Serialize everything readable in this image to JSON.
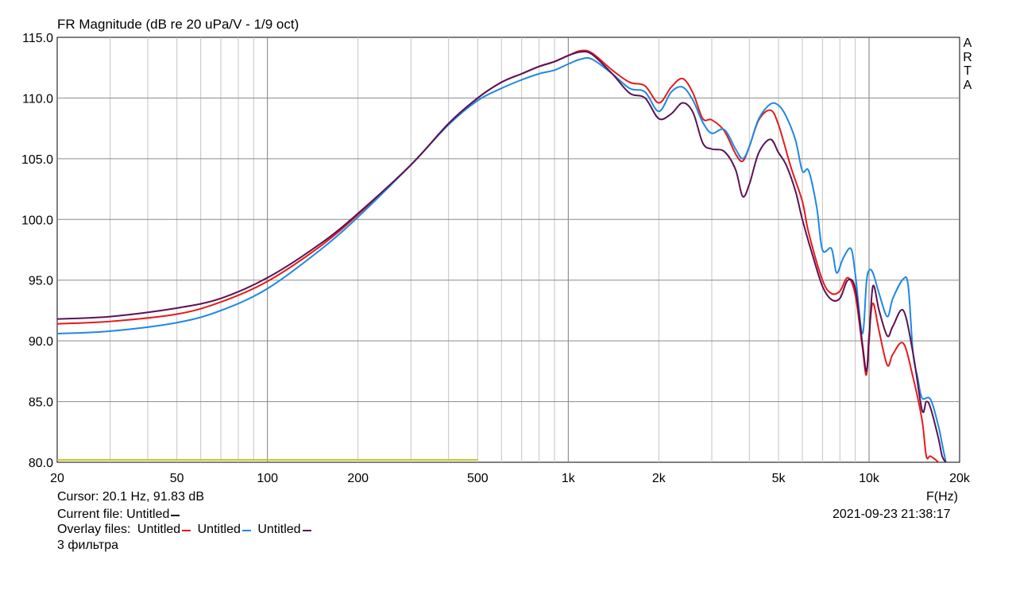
{
  "window": {
    "brand_letters": [
      "A",
      "R",
      "T",
      "A"
    ]
  },
  "footer": {
    "cursor": "Cursor: 20.1 Hz, 91.83 dB",
    "freq_unit": "F(Hz)",
    "current_file_label": "Current file: Untitled",
    "current_file_color": "#000000",
    "overlay_label": "Overlay files:",
    "overlays": [
      {
        "name": "Untitled",
        "color": "#e41b1b"
      },
      {
        "name": "Untitled",
        "color": "#1e88e5"
      },
      {
        "name": "Untitled",
        "color": "#5b1255"
      }
    ],
    "datetime": "2021-09-23  21:38:17",
    "note": "3 фильтра"
  },
  "chart_data": {
    "type": "line",
    "title": "FR Magnitude (dB re 20 uPa/V - 1/9 oct)",
    "xlabel": "F(Hz)",
    "ylabel": "",
    "x_scale": "log",
    "xlim": [
      20,
      20000
    ],
    "ylim": [
      80,
      115
    ],
    "x_ticks": [
      20,
      50,
      100,
      200,
      500,
      1000,
      2000,
      5000,
      10000,
      20000
    ],
    "x_tick_labels": [
      "20",
      "50",
      "100",
      "200",
      "500",
      "1k",
      "2k",
      "5k",
      "10k",
      "20k"
    ],
    "y_ticks": [
      80,
      85,
      90,
      95,
      100,
      105,
      110,
      115
    ],
    "y_tick_labels": [
      "80.0",
      "85.0",
      "90.0",
      "95.0",
      "100.0",
      "105.0",
      "110.0",
      "115.0"
    ],
    "grid": true,
    "series": [
      {
        "color": "#c8c822",
        "x": [
          20,
          500
        ],
        "y": [
          80.2,
          80.2
        ]
      },
      {
        "color": "#e41b1b",
        "x": [
          20,
          30,
          50,
          70,
          100,
          150,
          200,
          300,
          400,
          500,
          600,
          700,
          800,
          900,
          1000,
          1100,
          1200,
          1400,
          1600,
          1800,
          2000,
          2200,
          2400,
          2600,
          2800,
          3000,
          3300,
          3600,
          3800,
          4000,
          4300,
          4700,
          5000,
          5500,
          6000,
          6300,
          7000,
          7500,
          8000,
          8500,
          9000,
          9500,
          9800,
          10000,
          10300,
          10800,
          11500,
          12000,
          13000,
          14000,
          15000,
          15500,
          16000,
          17000,
          17500,
          18000
        ],
        "y": [
          91.4,
          91.6,
          92.2,
          93.2,
          94.9,
          97.8,
          100.4,
          104.5,
          107.9,
          110.0,
          111.3,
          112.0,
          112.6,
          113.0,
          113.5,
          113.9,
          113.7,
          112.3,
          111.3,
          111.0,
          109.6,
          110.9,
          111.6,
          110.4,
          108.3,
          108.2,
          107.3,
          105.4,
          104.8,
          106.0,
          108.2,
          109.0,
          107.8,
          104.3,
          101.5,
          98.9,
          95.0,
          93.9,
          94.1,
          95.2,
          93.8,
          89.5,
          87.2,
          90.5,
          93.1,
          90.8,
          88.0,
          88.9,
          89.8,
          87.0,
          83.5,
          80.5,
          80.5,
          80.0,
          79.5,
          79.0
        ]
      },
      {
        "color": "#1e88e5",
        "x": [
          20,
          30,
          50,
          70,
          100,
          150,
          200,
          300,
          400,
          500,
          600,
          700,
          800,
          900,
          1000,
          1100,
          1200,
          1400,
          1600,
          1800,
          2000,
          2200,
          2400,
          2600,
          2800,
          3000,
          3300,
          3600,
          3800,
          4000,
          4300,
          4700,
          5000,
          5300,
          5700,
          6000,
          6300,
          6700,
          7000,
          7500,
          7800,
          8200,
          8700,
          9000,
          9500,
          9800,
          10000,
          10300,
          10800,
          11500,
          12000,
          13000,
          13500,
          14000,
          14500,
          15000,
          16000,
          17000,
          17500,
          18000
        ],
        "y": [
          90.6,
          90.8,
          91.5,
          92.5,
          94.3,
          97.5,
          100.2,
          104.5,
          107.8,
          109.8,
          110.8,
          111.5,
          112.0,
          112.3,
          112.8,
          113.2,
          113.2,
          112.0,
          110.8,
          110.5,
          108.9,
          110.5,
          110.9,
          109.8,
          108.0,
          107.1,
          107.4,
          105.8,
          105.0,
          106.0,
          108.3,
          109.5,
          109.4,
          108.5,
          106.5,
          104.0,
          104.0,
          101.0,
          97.5,
          97.6,
          95.6,
          96.8,
          97.6,
          95.5,
          90.6,
          94.8,
          95.8,
          95.6,
          93.9,
          92.0,
          93.5,
          95.1,
          94.5,
          89.0,
          87.0,
          85.3,
          85.2,
          83.0,
          81.5,
          80.0
        ]
      },
      {
        "color": "#5b1255",
        "x": [
          20,
          30,
          50,
          70,
          100,
          150,
          200,
          300,
          400,
          500,
          600,
          700,
          800,
          900,
          1000,
          1100,
          1200,
          1400,
          1600,
          1800,
          2000,
          2200,
          2400,
          2600,
          2800,
          3000,
          3300,
          3600,
          3800,
          4000,
          4300,
          4700,
          5000,
          5300,
          5700,
          6000,
          6500,
          7000,
          7500,
          8000,
          8500,
          9000,
          9500,
          9800,
          10000,
          10300,
          10800,
          11500,
          12000,
          13000,
          14000,
          15000,
          15500,
          16000,
          17000,
          17500,
          18000
        ],
        "y": [
          91.8,
          92.0,
          92.7,
          93.5,
          95.2,
          98.0,
          100.5,
          104.5,
          107.9,
          110.0,
          111.3,
          112.0,
          112.6,
          113.0,
          113.5,
          113.8,
          113.6,
          112.0,
          110.4,
          110.0,
          108.3,
          108.7,
          109.6,
          108.8,
          106.3,
          105.8,
          105.6,
          104.1,
          101.9,
          102.9,
          105.5,
          106.6,
          105.5,
          104.5,
          102.3,
          100.0,
          97.0,
          94.5,
          93.4,
          93.5,
          95.0,
          94.3,
          89.8,
          87.5,
          90.0,
          94.5,
          92.5,
          90.4,
          91.2,
          92.5,
          89.0,
          84.3,
          85.0,
          84.5,
          82.0,
          80.5,
          80.0
        ]
      }
    ]
  }
}
